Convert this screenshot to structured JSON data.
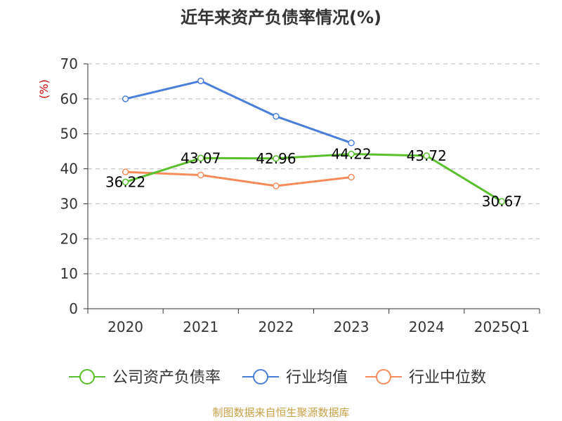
{
  "chart_data": {
    "type": "line",
    "title": "近年来资产负债率情况(%)",
    "unit_label": "(%)",
    "categories": [
      "2020",
      "2021",
      "2022",
      "2023",
      "2024",
      "2025Q1"
    ],
    "ylim": [
      0,
      70
    ],
    "yticks": [
      "0",
      "10",
      "20",
      "30",
      "40",
      "50",
      "60",
      "70"
    ],
    "grid": true,
    "legend_position": "bottom",
    "series": [
      {
        "name": "公司资产负债率",
        "color": "#5ac02c",
        "values": [
          36.22,
          43.07,
          42.96,
          44.22,
          43.72,
          30.67
        ],
        "labels": [
          "36.22",
          "43.07",
          "42.96",
          "44.22",
          "43.72",
          "30.67"
        ]
      },
      {
        "name": "行业均值",
        "color": "#4a7fdc",
        "values": [
          60.0,
          65.1,
          55.0,
          47.4,
          null,
          null
        ]
      },
      {
        "name": "行业中位数",
        "color": "#f68c5a",
        "values": [
          39.1,
          38.2,
          35.1,
          37.6,
          null,
          null
        ]
      }
    ]
  },
  "source_text": "制图数据来自恒生聚源数据库"
}
